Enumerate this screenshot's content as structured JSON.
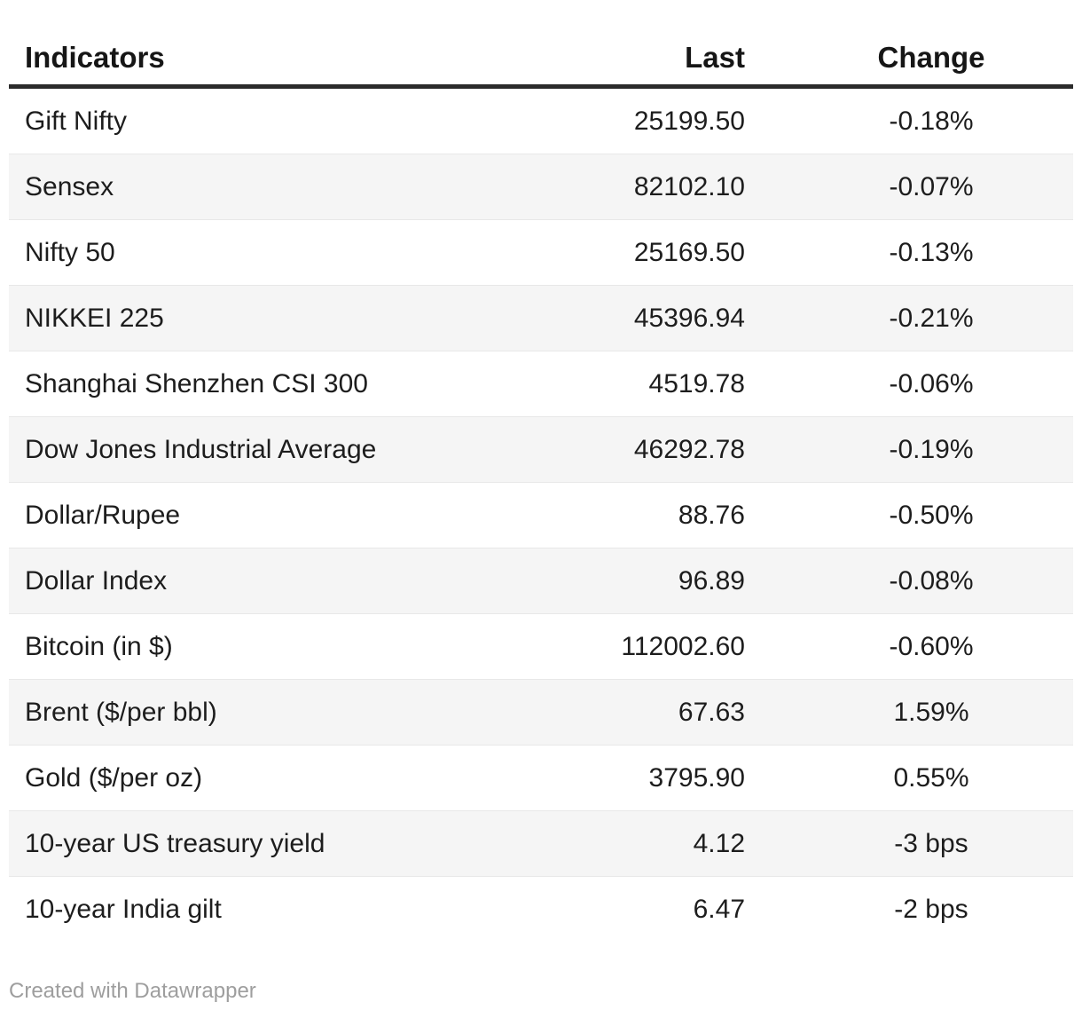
{
  "chart_data": {
    "type": "table",
    "columns": [
      {
        "label": "Indicators",
        "align": "left"
      },
      {
        "label": "Last",
        "align": "right"
      },
      {
        "label": "Change",
        "align": "center"
      }
    ],
    "rows": [
      {
        "indicator": "Gift Nifty",
        "last": "25199.50",
        "change": "-0.18%"
      },
      {
        "indicator": "Sensex",
        "last": "82102.10",
        "change": "-0.07%"
      },
      {
        "indicator": "Nifty 50",
        "last": "25169.50",
        "change": "-0.13%"
      },
      {
        "indicator": "NIKKEI 225",
        "last": "45396.94",
        "change": "-0.21%"
      },
      {
        "indicator": "Shanghai Shenzhen CSI 300",
        "last": "4519.78",
        "change": "-0.06%"
      },
      {
        "indicator": "Dow Jones Industrial Average",
        "last": "46292.78",
        "change": "-0.19%"
      },
      {
        "indicator": "Dollar/Rupee",
        "last": "88.76",
        "change": "-0.50%"
      },
      {
        "indicator": "Dollar Index",
        "last": "96.89",
        "change": "-0.08%"
      },
      {
        "indicator": "Bitcoin (in $)",
        "last": "112002.60",
        "change": "-0.60%"
      },
      {
        "indicator": "Brent ($/per bbl)",
        "last": "67.63",
        "change": "1.59%"
      },
      {
        "indicator": "Gold ($/per oz)",
        "last": "3795.90",
        "change": "0.55%"
      },
      {
        "indicator": "10-year US treasury yield",
        "last": "4.12",
        "change": "-3 bps"
      },
      {
        "indicator": "10-year India gilt",
        "last": "6.47",
        "change": "-2 bps"
      }
    ],
    "layout": {
      "zebra_striping": true,
      "first_row_background": "#ffffff",
      "stripe_color": "#f5f5f5",
      "header_rule_color": "#2b2b2b",
      "row_divider_color": "#e8e8e8"
    }
  },
  "footer": {
    "credit": "Created with Datawrapper"
  },
  "colors": {
    "text": "#1d1d1d",
    "credit_text": "#9e9e9e",
    "background": "#ffffff"
  }
}
